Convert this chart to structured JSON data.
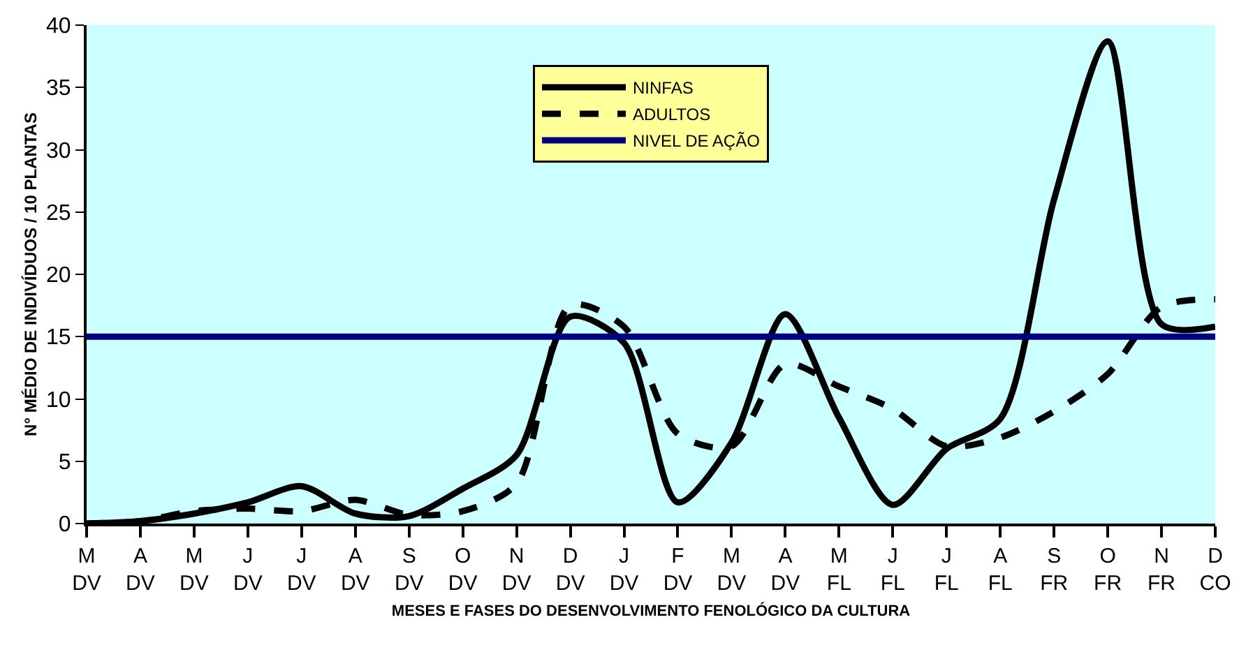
{
  "chart_data": {
    "type": "line",
    "xlabel": "MESES E FASES DO DESENVOLVIMENTO FENOLÓGICO DA CULTURA",
    "ylabel": "N° MÉDIO DE INDIVÍDUOS / 10 PLANTAS",
    "categories": [
      "M\nDV",
      "A\nDV",
      "M\nDV",
      "J\nDV",
      "J\nDV",
      "A\nDV",
      "S\nDV",
      "O\nDV",
      "N\nDV",
      "D\nDV",
      "J\nDV",
      "F\nDV",
      "M\nDV",
      "A\nDV",
      "M\nFL",
      "J\nFL",
      "J\nFL",
      "A\nFL",
      "S\nFR",
      "O\nFR",
      "N\nFR",
      "D\nCO"
    ],
    "series": [
      {
        "name": "NINFAS",
        "color": "#000000",
        "line_style": "solid",
        "values": [
          0,
          0.2,
          0.8,
          1.7,
          3.0,
          0.8,
          0.6,
          2.8,
          5.5,
          16.6,
          14.5,
          1.7,
          6.5,
          16.8,
          8.5,
          1.5,
          6,
          8.4,
          26,
          38.7,
          16,
          15.8
        ]
      },
      {
        "name": "ADULTOS",
        "color": "#000000",
        "line_style": "dashed",
        "values": [
          0,
          0.2,
          1.0,
          1.2,
          1.0,
          1.9,
          0.7,
          1.0,
          3.2,
          17.5,
          15.8,
          7.2,
          6.2,
          12.8,
          11,
          9.2,
          6.2,
          6.9,
          9,
          12,
          17.4,
          18
        ]
      },
      {
        "name": "NIVEL DE AÇÃO",
        "color": "#000080",
        "line_style": "solid",
        "values": [
          15,
          15,
          15,
          15,
          15,
          15,
          15,
          15,
          15,
          15,
          15,
          15,
          15,
          15,
          15,
          15,
          15,
          15,
          15,
          15,
          15,
          15
        ]
      }
    ],
    "ylim": [
      0,
      40
    ],
    "yticks": [
      0,
      5,
      10,
      15,
      20,
      25,
      30,
      35,
      40
    ],
    "grid": false,
    "legend": "top",
    "marker": "none"
  }
}
